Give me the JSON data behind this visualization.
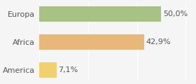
{
  "categories": [
    "America",
    "Africa",
    "Europa"
  ],
  "values": [
    7.1,
    42.9,
    50.0
  ],
  "bar_colors": [
    "#f0d070",
    "#e8b87a",
    "#a8c185"
  ],
  "labels": [
    "7,1%",
    "42,9%",
    "50,0%"
  ],
  "background_color": "#f5f5f5",
  "xlim": [
    0,
    63
  ],
  "bar_height": 0.55,
  "label_fontsize": 8.0,
  "tick_fontsize": 8.0
}
